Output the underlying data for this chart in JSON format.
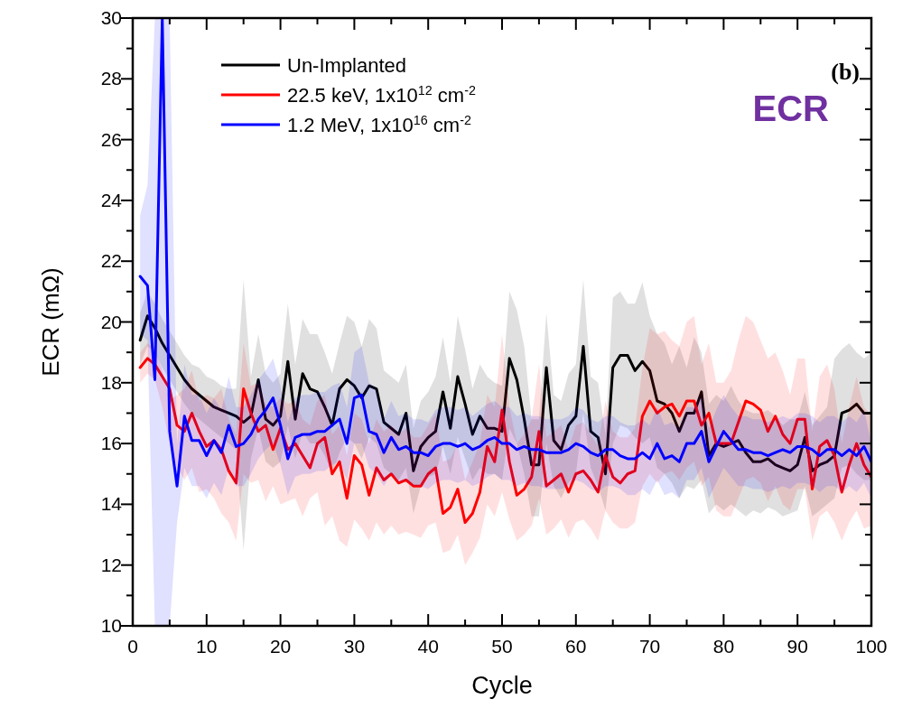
{
  "chart_data": {
    "type": "line",
    "xlabel": "Cycle",
    "ylabel": "ECR (mΩ)",
    "annotations": [
      "(b)",
      "ECR"
    ],
    "xlim": [
      0,
      100
    ],
    "xticks": [
      0,
      {
        "value": 5,
        "label": null
      },
      10,
      {
        "value": 15,
        "label": null
      },
      20,
      {
        "value": 25,
        "label": null
      },
      30,
      {
        "value": 35,
        "label": null
      },
      40,
      {
        "value": 45,
        "label": null
      },
      50,
      {
        "value": 55,
        "label": null
      },
      60,
      {
        "value": 65,
        "label": null
      },
      70,
      {
        "value": 75,
        "label": null
      },
      80,
      {
        "value": 85,
        "label": null
      },
      90,
      {
        "value": 95,
        "label": null
      },
      100
    ],
    "ylim": [
      10,
      30
    ],
    "yticks": [
      10,
      {
        "value": 11,
        "label": null
      },
      12,
      {
        "value": 13,
        "label": null
      },
      14,
      {
        "value": 15,
        "label": null
      },
      16,
      {
        "value": 17,
        "label": null
      },
      18,
      {
        "value": 19,
        "label": null
      },
      20,
      {
        "value": 21,
        "label": null
      },
      22,
      {
        "value": 23,
        "label": null
      },
      24,
      {
        "value": 25,
        "label": null
      },
      26,
      {
        "value": 27,
        "label": null
      },
      28,
      {
        "value": 29,
        "label": null
      },
      30
    ],
    "grid": false,
    "legend": "top left",
    "marker": "none",
    "line_style": "solid",
    "x": [
      1,
      2,
      3,
      4,
      5,
      6,
      7,
      8,
      9,
      10,
      11,
      12,
      13,
      14,
      15,
      16,
      17,
      18,
      19,
      20,
      21,
      22,
      23,
      24,
      25,
      26,
      27,
      28,
      29,
      30,
      31,
      32,
      33,
      34,
      35,
      36,
      37,
      38,
      39,
      40,
      41,
      42,
      43,
      44,
      45,
      46,
      47,
      48,
      49,
      50,
      51,
      52,
      53,
      54,
      55,
      56,
      57,
      58,
      59,
      60,
      61,
      62,
      63,
      64,
      65,
      66,
      67,
      68,
      69,
      70,
      71,
      72,
      73,
      74,
      75,
      76,
      77,
      78,
      79,
      80,
      81,
      82,
      83,
      84,
      85,
      86,
      87,
      88,
      89,
      90,
      91,
      92,
      93,
      94,
      95,
      96,
      97,
      98,
      99,
      100
    ],
    "series": [
      {
        "name": "Un-Implanted",
        "color": "#000000",
        "values": [
          19.4,
          20.2,
          19.8,
          19.3,
          18.9,
          18.5,
          18.1,
          17.8,
          17.6,
          17.4,
          17.2,
          17.1,
          17.0,
          16.9,
          16.7,
          16.9,
          18.1,
          16.8,
          16.6,
          16.9,
          18.7,
          16.8,
          18.3,
          17.8,
          17.7,
          17.2,
          16.6,
          17.8,
          18.1,
          17.9,
          17.5,
          17.9,
          17.8,
          16.7,
          16.5,
          16.3,
          17.0,
          15.1,
          15.9,
          16.2,
          16.4,
          17.7,
          16.5,
          18.2,
          17.3,
          16.3,
          16.9,
          16.5,
          16.5,
          16.4,
          18.8,
          18.1,
          16.8,
          15.3,
          15.3,
          18.5,
          16.1,
          15.8,
          16.6,
          16.9,
          19.2,
          16.4,
          16.2,
          15.0,
          18.5,
          18.9,
          18.9,
          18.4,
          18.7,
          18.4,
          17.4,
          17.3,
          17.0,
          16.4,
          17.0,
          17.0,
          17.7,
          15.6,
          16.0,
          15.9,
          16.0,
          16.1,
          15.7,
          15.4,
          15.4,
          15.5,
          15.3,
          15.2,
          15.1,
          15.3,
          16.2,
          15.1,
          15.3,
          15.4,
          15.6,
          17.0,
          17.1,
          17.3,
          17.0,
          17.0
        ],
        "lower": [
          18.6,
          19.2,
          19.0,
          18.5,
          18.1,
          17.7,
          17.3,
          17.0,
          16.8,
          16.6,
          16.4,
          16.2,
          16.0,
          15.8,
          12.5,
          15.5,
          16.5,
          15.4,
          15.2,
          15.4,
          16.6,
          15.5,
          16.4,
          16.0,
          16.0,
          15.6,
          15.0,
          15.7,
          16.2,
          16.0,
          15.5,
          16.2,
          16.0,
          15.2,
          15.0,
          14.8,
          15.2,
          13.7,
          14.6,
          14.9,
          15.0,
          15.9,
          15.0,
          16.2,
          15.5,
          14.8,
          15.2,
          15.0,
          15.0,
          14.8,
          16.5,
          16.0,
          15.0,
          13.6,
          13.6,
          16.0,
          14.6,
          14.2,
          14.7,
          15.0,
          17.0,
          15.2,
          14.6,
          13.8,
          16.0,
          16.6,
          16.5,
          16.2,
          16.0,
          16.2,
          15.2,
          15.0,
          14.7,
          14.2,
          14.6,
          14.5,
          14.8,
          13.7,
          14.0,
          13.8,
          14.0,
          13.8,
          13.6,
          13.8,
          13.7,
          13.9,
          13.8,
          13.6,
          13.7,
          13.8,
          14.6,
          13.6,
          13.8,
          14.0,
          14.2,
          15.2,
          15.3,
          15.0,
          14.8,
          14.8
        ],
        "upper": [
          20.3,
          21.0,
          20.6,
          20.1,
          19.7,
          19.3,
          18.9,
          18.6,
          18.5,
          18.2,
          18.1,
          17.9,
          17.8,
          17.8,
          21.4,
          18.2,
          19.6,
          18.3,
          18.0,
          18.3,
          20.6,
          18.6,
          20.1,
          19.6,
          19.6,
          19.0,
          18.3,
          19.3,
          20.2,
          20.0,
          19.2,
          20.1,
          19.8,
          18.4,
          18.2,
          18.0,
          18.6,
          16.5,
          17.4,
          17.7,
          18.2,
          19.5,
          18.0,
          20.2,
          19.1,
          17.8,
          18.6,
          18.2,
          18.0,
          17.9,
          21.0,
          20.4,
          19.2,
          16.8,
          16.8,
          20.3,
          17.6,
          17.4,
          18.3,
          18.6,
          21.4,
          18.2,
          18.0,
          16.3,
          20.8,
          21.0,
          20.6,
          20.6,
          21.3,
          20.2,
          19.6,
          19.3,
          18.6,
          19.2,
          18.5,
          19.5,
          19.0,
          17.3,
          17.6,
          17.4,
          17.9,
          17.4,
          17.1,
          17.0,
          17.0,
          17.1,
          16.9,
          16.6,
          16.8,
          16.8,
          17.7,
          16.6,
          16.9,
          17.2,
          18.8,
          19.1,
          19.3,
          19.0,
          18.8,
          19.0
        ]
      },
      {
        "name": "22.5 keV, 1x10$^{12}$ cm$^{-2}$",
        "color": "#ff0000",
        "values": [
          18.5,
          18.8,
          18.6,
          18.2,
          17.8,
          16.6,
          16.4,
          17.0,
          16.4,
          15.9,
          16.1,
          15.8,
          15.1,
          14.7,
          17.8,
          17.0,
          16.4,
          16.6,
          15.8,
          16.5,
          15.8,
          16.0,
          15.6,
          15.2,
          16.0,
          16.2,
          15.0,
          15.4,
          14.2,
          15.6,
          15.3,
          14.3,
          15.2,
          14.8,
          15.0,
          14.7,
          14.8,
          14.6,
          14.6,
          15.0,
          15.2,
          13.7,
          13.9,
          14.5,
          13.4,
          13.7,
          14.4,
          15.9,
          15.4,
          17.1,
          15.4,
          14.3,
          14.5,
          14.9,
          16.4,
          14.6,
          14.8,
          15.0,
          14.4,
          15.0,
          15.1,
          14.8,
          14.4,
          15.6,
          14.9,
          14.7,
          15.0,
          15.1,
          16.9,
          17.4,
          17.0,
          17.2,
          17.3,
          16.9,
          17.4,
          17.4,
          16.6,
          17.0,
          16.0,
          16.0,
          16.0,
          16.7,
          17.4,
          17.3,
          17.1,
          16.4,
          16.9,
          16.3,
          16.0,
          16.8,
          16.8,
          14.5,
          15.9,
          16.1,
          15.6,
          14.4,
          15.3,
          16.0,
          15.3,
          14.9
        ],
        "lower": [
          18.0,
          18.3,
          18.1,
          17.2,
          16.0,
          15.2,
          14.8,
          15.2,
          14.4,
          14.5,
          14.2,
          13.7,
          13.4,
          12.8,
          15.0,
          14.7,
          14.8,
          14.1,
          14.6,
          14.0,
          14.1,
          14.2,
          13.6,
          14.2,
          14.4,
          13.3,
          13.6,
          12.8,
          12.6,
          13.5,
          13.2,
          12.8,
          13.4,
          13.0,
          13.3,
          13.0,
          13.1,
          13.0,
          12.9,
          13.3,
          13.4,
          12.4,
          12.5,
          13.0,
          12.0,
          12.4,
          12.9,
          14.0,
          13.6,
          14.4,
          13.5,
          12.8,
          13.0,
          13.3,
          14.2,
          13.0,
          13.2,
          13.5,
          12.9,
          13.4,
          13.5,
          13.2,
          12.8,
          13.8,
          13.4,
          13.2,
          13.2,
          13.4,
          14.6,
          15.0,
          14.7,
          15.0,
          15.1,
          14.8,
          15.2,
          15.4,
          14.6,
          14.9,
          13.8,
          13.6,
          13.6,
          14.2,
          14.8,
          14.9,
          14.7,
          14.1,
          14.6,
          14.0,
          13.8,
          14.5,
          14.5,
          12.8,
          13.6,
          13.8,
          13.4,
          12.8,
          13.4,
          13.8,
          13.2,
          13.3
        ],
        "upper": [
          19.0,
          19.3,
          19.1,
          18.4,
          17.4,
          17.6,
          17.8,
          18.4,
          17.4,
          17.6,
          17.5,
          17.8,
          16.8,
          16.3,
          19.3,
          17.9,
          18.0,
          17.3,
          17.2,
          17.5,
          17.3,
          17.4,
          16.8,
          16.6,
          17.4,
          17.6,
          16.3,
          16.6,
          15.6,
          17.0,
          16.8,
          16.0,
          16.8,
          16.4,
          16.6,
          16.3,
          16.5,
          16.2,
          16.2,
          16.6,
          17.0,
          15.4,
          15.5,
          16.0,
          14.8,
          15.4,
          16.0,
          17.6,
          17.2,
          19.6,
          17.2,
          16.0,
          16.3,
          16.8,
          18.6,
          16.2,
          16.4,
          16.6,
          15.8,
          16.6,
          16.7,
          16.3,
          15.9,
          17.4,
          16.4,
          16.2,
          16.2,
          16.5,
          18.5,
          19.8,
          19.6,
          19.7,
          19.4,
          19.2,
          20.0,
          20.2,
          18.6,
          19.3,
          18.0,
          18.0,
          18.4,
          19.4,
          20.2,
          20.0,
          19.4,
          18.8,
          19.0,
          18.4,
          17.6,
          18.8,
          18.8,
          16.4,
          18.2,
          18.6,
          17.8,
          16.0,
          17.2,
          18.2,
          17.2,
          16.9
        ]
      },
      {
        "name": "1.2 MeV, 1x10$^{16}$ cm$^{-2}$",
        "color": "#0000ff",
        "values": [
          21.5,
          21.2,
          18.1,
          30,
          16.4,
          14.6,
          16.9,
          16.1,
          16.1,
          15.6,
          16.1,
          15.7,
          16.6,
          15.9,
          16.0,
          16.3,
          16.8,
          17.1,
          17.5,
          16.6,
          15.5,
          16.2,
          16.3,
          16.3,
          16.4,
          16.4,
          16.6,
          16.8,
          16.0,
          17.5,
          17.6,
          16.4,
          16.3,
          15.7,
          16.2,
          15.8,
          15.9,
          15.7,
          15.7,
          15.6,
          15.9,
          16.0,
          16.0,
          15.9,
          16.0,
          15.8,
          15.9,
          16.1,
          16.2,
          16.0,
          16.0,
          15.8,
          15.9,
          15.8,
          15.8,
          15.7,
          15.7,
          15.7,
          15.8,
          16.0,
          15.9,
          15.7,
          15.6,
          15.8,
          15.8,
          15.6,
          15.5,
          15.5,
          15.7,
          15.5,
          16.0,
          15.5,
          15.6,
          15.4,
          16.0,
          16.0,
          16.4,
          15.4,
          15.9,
          16.4,
          16.1,
          15.8,
          15.8,
          15.7,
          15.7,
          15.6,
          15.7,
          15.8,
          15.7,
          15.9,
          15.9,
          15.8,
          15.6,
          15.8,
          15.8,
          15.6,
          15.8,
          15.6,
          15.9,
          15.4
        ],
        "lower": [
          19.6,
          19.4,
          10.0,
          10.0,
          10.0,
          13.4,
          15.2,
          14.6,
          14.6,
          14.2,
          14.7,
          14.3,
          15.2,
          14.6,
          14.6,
          15.0,
          15.5,
          15.8,
          16.0,
          15.3,
          14.3,
          14.9,
          15.0,
          15.0,
          15.1,
          15.1,
          15.3,
          15.4,
          14.8,
          16.0,
          16.0,
          15.2,
          15.0,
          14.6,
          15.0,
          14.7,
          14.8,
          14.6,
          14.6,
          14.5,
          14.7,
          14.8,
          14.8,
          14.7,
          14.8,
          14.6,
          14.7,
          14.9,
          15.0,
          14.8,
          14.8,
          14.6,
          14.7,
          14.6,
          14.6,
          14.5,
          14.5,
          14.5,
          14.6,
          14.8,
          14.7,
          14.5,
          14.4,
          14.6,
          14.6,
          14.5,
          14.3,
          14.3,
          14.5,
          14.3,
          14.8,
          14.3,
          14.4,
          14.2,
          14.8,
          14.8,
          15.2,
          14.2,
          14.7,
          15.2,
          14.9,
          14.6,
          14.6,
          14.5,
          14.5,
          14.4,
          14.5,
          14.6,
          14.5,
          14.7,
          14.7,
          14.6,
          14.4,
          14.6,
          14.6,
          14.4,
          14.6,
          14.4,
          14.7,
          14.2
        ],
        "upper": [
          23.5,
          24.5,
          30.0,
          30.0,
          30.0,
          16.0,
          18.6,
          17.6,
          17.6,
          17.0,
          17.5,
          17.1,
          18.2,
          17.2,
          17.2,
          17.6,
          18.1,
          18.4,
          18.8,
          17.9,
          16.7,
          17.5,
          17.6,
          17.6,
          17.7,
          17.7,
          17.9,
          18.0,
          17.2,
          19.0,
          19.2,
          18.0,
          17.8,
          16.8,
          17.4,
          16.9,
          17.0,
          16.8,
          16.8,
          16.7,
          17.1,
          17.2,
          17.2,
          17.1,
          17.2,
          16.9,
          17.1,
          17.3,
          17.4,
          17.2,
          17.2,
          16.9,
          17.0,
          16.9,
          16.9,
          16.8,
          16.8,
          16.8,
          16.9,
          17.2,
          17.1,
          16.8,
          16.7,
          16.9,
          16.9,
          16.7,
          16.6,
          16.6,
          16.8,
          16.6,
          17.2,
          16.6,
          16.7,
          16.5,
          17.2,
          17.2,
          17.6,
          16.5,
          17.1,
          17.6,
          17.2,
          16.9,
          16.9,
          16.8,
          16.8,
          16.7,
          16.8,
          16.9,
          16.8,
          17.0,
          17.0,
          16.9,
          16.7,
          16.9,
          16.9,
          16.7,
          16.9,
          16.7,
          17.1,
          16.0
        ]
      }
    ]
  }
}
